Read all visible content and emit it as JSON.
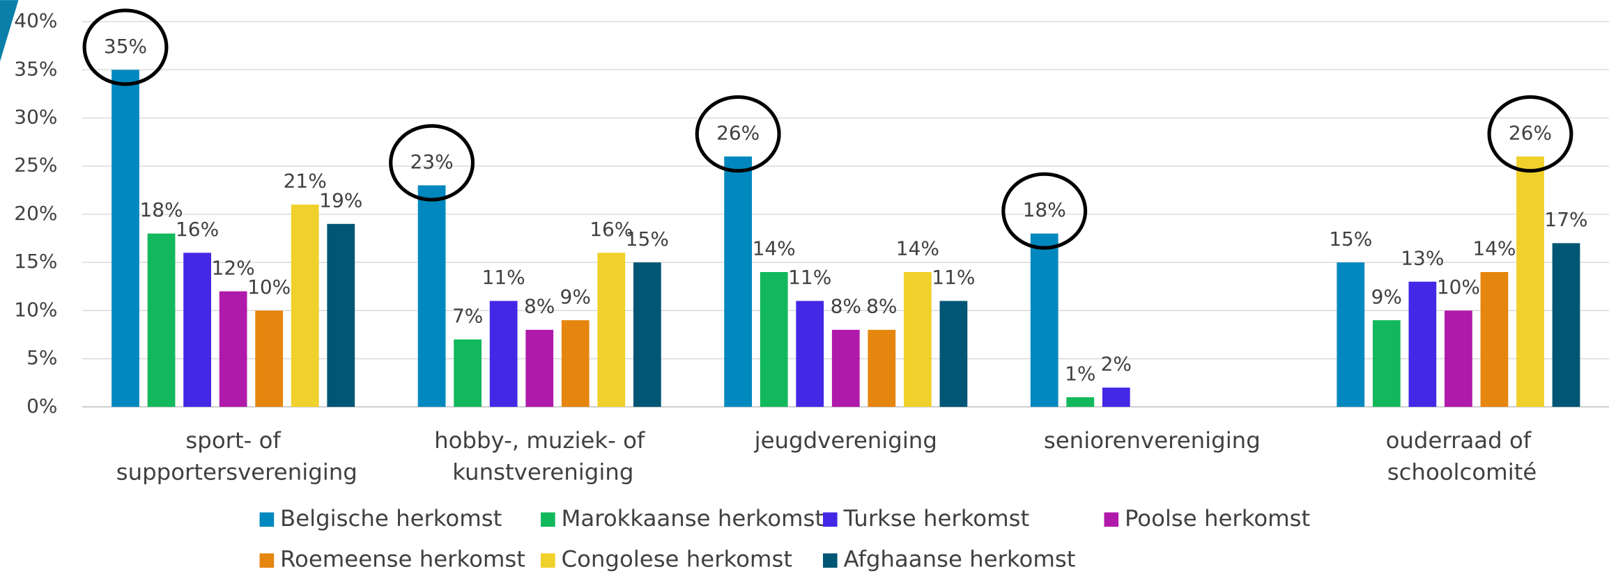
{
  "chart_data": {
    "type": "bar",
    "categories": [
      "sport- of supportersvereniging",
      "hobby-, muziek- of kunstvereniging",
      "jeugdvereniging",
      "seniorenvereniging",
      "ouderraad of schoolcomité"
    ],
    "series": [
      {
        "name": "Belgische herkomst",
        "color": "#0088bf",
        "values": [
          35,
          23,
          26,
          18,
          15
        ],
        "value_labels": [
          "35%",
          "23%",
          "26%",
          "18%",
          "15%"
        ]
      },
      {
        "name": "Marokkaanse herkomst",
        "color": "#12b85c",
        "values": [
          18,
          7,
          14,
          1,
          9
        ],
        "value_labels": [
          "18%",
          "7%",
          "14%",
          "1%",
          "9%"
        ]
      },
      {
        "name": "Turkse herkomst",
        "color": "#4328e6",
        "values": [
          16,
          11,
          11,
          2,
          13
        ],
        "value_labels": [
          "16%",
          "11%",
          "11%",
          "2%",
          "13%"
        ]
      },
      {
        "name": "Poolse herkomst",
        "color": "#b01aab",
        "values": [
          12,
          8,
          8,
          null,
          10
        ],
        "value_labels": [
          "12%",
          "8%",
          "8%",
          null,
          "10%"
        ]
      },
      {
        "name": "Roemeense herkomst",
        "color": "#e5860f",
        "values": [
          10,
          9,
          8,
          null,
          14
        ],
        "value_labels": [
          "10%",
          "9%",
          "8%",
          null,
          "14%"
        ]
      },
      {
        "name": "Congolese herkomst",
        "color": "#f0d02a",
        "values": [
          21,
          16,
          14,
          null,
          26
        ],
        "value_labels": [
          "21%",
          "16%",
          "14%",
          null,
          "26%"
        ]
      },
      {
        "name": "Afghaanse herkomst",
        "color": "#005674",
        "values": [
          19,
          15,
          11,
          null,
          17
        ],
        "value_labels": [
          "19%",
          "15%",
          "11%",
          null,
          "17%"
        ]
      }
    ],
    "ylim": [
      0,
      40
    ],
    "yticks": [
      {
        "value": 0,
        "label": "0%"
      },
      {
        "value": 5,
        "label": "5%"
      },
      {
        "value": 10,
        "label": "10%"
      },
      {
        "value": 15,
        "label": "15%"
      },
      {
        "value": 20,
        "label": "20%"
      },
      {
        "value": 25,
        "label": "25%"
      },
      {
        "value": 30,
        "label": "30%"
      },
      {
        "value": 35,
        "label": "35%"
      },
      {
        "value": 40,
        "label": "40%"
      }
    ],
    "grid": true,
    "legend": "bottom"
  }
}
